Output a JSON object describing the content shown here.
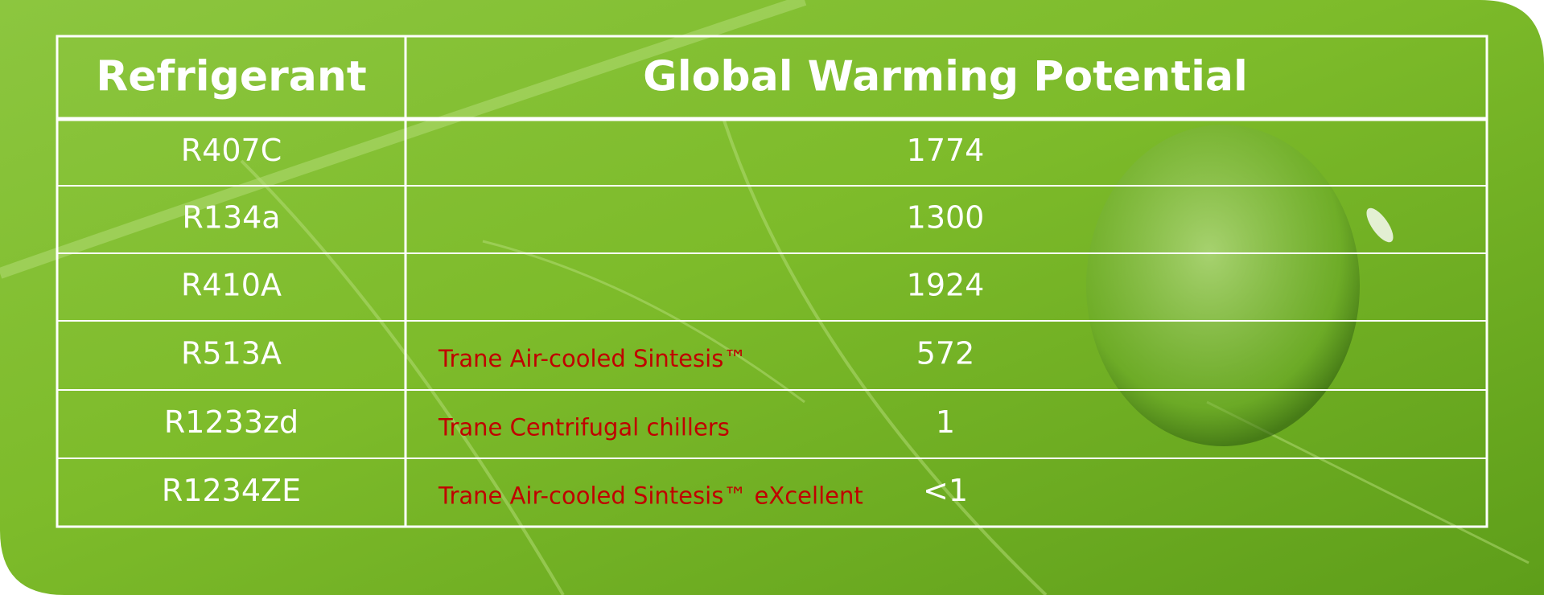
{
  "table": {
    "header": [
      "Refrigerant",
      "Global Warming Potential"
    ],
    "rows": [
      {
        "refrigerant": "R407C",
        "gwp": "1774"
      },
      {
        "refrigerant": "R134a",
        "gwp": "1300"
      },
      {
        "refrigerant": "R410A",
        "gwp": "1924"
      },
      {
        "refrigerant": "R513A",
        "note": "Trane  Air-cooled Sintesis™",
        "gwp": "572"
      },
      {
        "refrigerant": "R1233zd",
        "note": "Trane Centrifugal chillers",
        "gwp": "1"
      },
      {
        "refrigerant": "R1234ZE",
        "note": "Trane Air-cooled Sintesis™ eXcellent",
        "gwp": "<1"
      }
    ]
  }
}
